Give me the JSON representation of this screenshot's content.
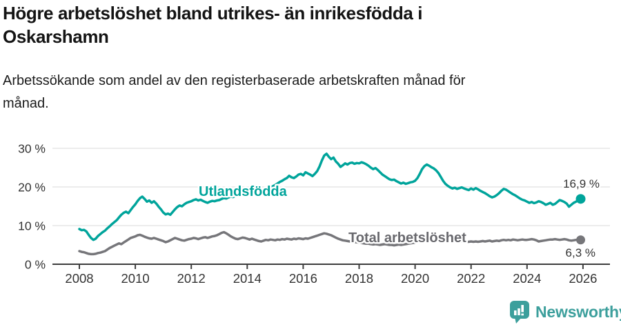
{
  "title": {
    "line1": "Högre arbetslöshet bland utrikes- än inrikesfödda i",
    "line2": "Oskarshamn"
  },
  "subtitle": {
    "line1": "Arbetssökande som andel av den registerbaserade arbetskraften månad för",
    "line2": "månad."
  },
  "branding": {
    "logo_text": "Newsworthy",
    "logo_icon": "bar-chart-speech-bubble-icon"
  },
  "colors": {
    "foreign_born_line": "#00a49b",
    "total_line": "#76767a",
    "total_label": "#68686d",
    "axis_text": "#333333",
    "end_label_text": "#333333",
    "gridline": "#e0e0e0",
    "axis_line": "#3d3d3d",
    "logo_teal": "#3c9f9c",
    "background": "#ffffff"
  },
  "chart_data": {
    "type": "line",
    "start_year": 2008,
    "points_per_year": 12,
    "grid": "horizontal",
    "ylim": [
      0,
      32
    ],
    "y_ticks": [
      {
        "value": 0,
        "label": "0 %"
      },
      {
        "value": 10,
        "label": "10 %"
      },
      {
        "value": 20,
        "label": "20 %"
      },
      {
        "value": 30,
        "label": "30 %"
      }
    ],
    "x_ticks": [
      {
        "year": 2008,
        "label": "2008"
      },
      {
        "year": 2010,
        "label": "2010"
      },
      {
        "year": 2012,
        "label": "2012"
      },
      {
        "year": 2014,
        "label": "2014"
      },
      {
        "year": 2016,
        "label": "2016"
      },
      {
        "year": 2018,
        "label": "2018"
      },
      {
        "year": 2020,
        "label": "2020"
      },
      {
        "year": 2022,
        "label": "2022"
      },
      {
        "year": 2024,
        "label": "2024"
      },
      {
        "year": 2026,
        "label": "2026"
      }
    ],
    "series": [
      {
        "name": "Utlandsfödda",
        "line_label": "Utlandsfödda",
        "end_label": "16,9 %",
        "end_value": 16.9,
        "values": [
          [
            9.1,
            8.8,
            8.9,
            8.5,
            7.6,
            6.8,
            6.3,
            6.6,
            7.3,
            7.8,
            8.3,
            8.7
          ],
          [
            9.3,
            9.8,
            10.4,
            10.9,
            11.4,
            12.1,
            12.8,
            13.3,
            13.6,
            13.2,
            14.0,
            14.8
          ],
          [
            15.5,
            16.4,
            17.1,
            17.5,
            16.9,
            16.2,
            16.5,
            15.9,
            16.3,
            15.7,
            14.9,
            14.2
          ],
          [
            13.4,
            12.9,
            13.1,
            12.8,
            13.5,
            14.2,
            14.8,
            15.2,
            15.0,
            15.5,
            15.9,
            16.1
          ],
          [
            16.3,
            16.6,
            16.8,
            16.5,
            16.7,
            16.4,
            16.1,
            15.9,
            16.2,
            16.4,
            16.3,
            16.5
          ],
          [
            16.6,
            16.9,
            17.1,
            17.0,
            17.3,
            17.5,
            17.4,
            17.7,
            17.9,
            17.8,
            18.0,
            18.2
          ],
          [
            18.1,
            18.4,
            18.6,
            18.5,
            18.8,
            19.0,
            19.2,
            19.1,
            19.4,
            19.7,
            19.9,
            20.2
          ],
          [
            20.5,
            20.9,
            21.3,
            21.6,
            22.0,
            22.3,
            22.9,
            22.5,
            22.3,
            22.7,
            23.2,
            23.4
          ],
          [
            23.0,
            23.8,
            23.5,
            23.2,
            22.8,
            23.4,
            24.1,
            25.3,
            26.8,
            28.1,
            28.6,
            27.8
          ],
          [
            27.2,
            27.6,
            26.6,
            26.0,
            25.2,
            25.6,
            26.1,
            25.8,
            26.2,
            26.3,
            26.0,
            26.2
          ],
          [
            26.1,
            26.4,
            26.2,
            25.9,
            25.5,
            25.0,
            24.6,
            24.9,
            24.4,
            23.8,
            23.2,
            22.8
          ],
          [
            22.4,
            22.0,
            21.8,
            21.9,
            21.5,
            21.2,
            20.9,
            21.1,
            20.8,
            21.0,
            21.2,
            21.3
          ],
          [
            21.6,
            22.3,
            23.4,
            24.6,
            25.4,
            25.8,
            25.5,
            25.1,
            24.8,
            24.3,
            23.6,
            22.6
          ],
          [
            21.6,
            20.8,
            20.3,
            19.9,
            19.6,
            19.8,
            19.5,
            19.7,
            19.9,
            19.6,
            19.4,
            19.2
          ],
          [
            19.6,
            19.3,
            19.7,
            19.4,
            19.0,
            18.7,
            18.4,
            18.0,
            17.6,
            17.3,
            17.5,
            17.9
          ],
          [
            18.4,
            19.0,
            19.5,
            19.3,
            18.9,
            18.5,
            18.1,
            17.8,
            17.4,
            17.0,
            16.7,
            16.5
          ],
          [
            16.2,
            15.9,
            16.1,
            15.8,
            16.0,
            16.3,
            16.1,
            15.8,
            15.4,
            15.6,
            15.9,
            15.4
          ],
          [
            15.6,
            16.1,
            16.6,
            16.4,
            16.1,
            15.7,
            14.9,
            15.4,
            15.9,
            16.2,
            16.5,
            16.9
          ]
        ]
      },
      {
        "name": "Total arbetslöshet",
        "line_label": "Total arbetslöshet",
        "end_label": "6,3 %",
        "end_value": 6.3,
        "values": [
          [
            3.4,
            3.2,
            3.1,
            2.9,
            2.7,
            2.6,
            2.6,
            2.7,
            2.9,
            3.0,
            3.2,
            3.4
          ],
          [
            3.8,
            4.2,
            4.5,
            4.8,
            5.1,
            5.4,
            5.2,
            5.6,
            6.0,
            6.4,
            6.8,
            7.0
          ],
          [
            7.2,
            7.5,
            7.6,
            7.4,
            7.1,
            6.9,
            6.7,
            6.6,
            6.8,
            6.6,
            6.4,
            6.2
          ],
          [
            6.0,
            5.7,
            5.9,
            6.2,
            6.5,
            6.8,
            6.6,
            6.4,
            6.2,
            6.1,
            6.3,
            6.5
          ],
          [
            6.6,
            6.8,
            6.7,
            6.5,
            6.7,
            6.9,
            7.0,
            6.8,
            7.0,
            7.2,
            7.3,
            7.5
          ],
          [
            7.8,
            8.1,
            8.3,
            8.0,
            7.6,
            7.2,
            6.9,
            6.6,
            6.5,
            6.7,
            6.9,
            6.8
          ],
          [
            6.6,
            6.4,
            6.6,
            6.4,
            6.2,
            6.0,
            5.9,
            6.1,
            6.3,
            6.2,
            6.4,
            6.3
          ],
          [
            6.2,
            6.4,
            6.3,
            6.5,
            6.4,
            6.6,
            6.5,
            6.4,
            6.6,
            6.5,
            6.7,
            6.6
          ],
          [
            6.5,
            6.7,
            6.6,
            6.8,
            7.0,
            7.2,
            7.4,
            7.6,
            7.8,
            8.0,
            7.9,
            7.7
          ],
          [
            7.5,
            7.2,
            6.9,
            6.6,
            6.4,
            6.2,
            6.1,
            6.0,
            5.9,
            5.8,
            5.7,
            5.7
          ],
          [
            5.6,
            5.5,
            5.4,
            5.3,
            5.3,
            5.2,
            5.1,
            5.2,
            5.1,
            5.0,
            5.1,
            5.2
          ],
          [
            5.1,
            5.0,
            5.0,
            4.9,
            5.0,
            5.1,
            5.0,
            5.1,
            5.2,
            5.3,
            5.4,
            5.5
          ],
          [
            5.6,
            5.8,
            6.3,
            6.8,
            7.1,
            7.3,
            7.2,
            7.1,
            7.0,
            6.9,
            6.8,
            6.7
          ],
          [
            6.6,
            6.5,
            6.4,
            6.3,
            6.2,
            6.1,
            6.0,
            6.0,
            5.9,
            5.9,
            5.8,
            5.8
          ],
          [
            5.9,
            5.8,
            5.9,
            5.8,
            5.9,
            6.0,
            5.9,
            6.0,
            6.1,
            5.9,
            6.0,
            6.1
          ],
          [
            6.0,
            6.2,
            6.3,
            6.2,
            6.3,
            6.2,
            6.4,
            6.3,
            6.2,
            6.3,
            6.4,
            6.3
          ],
          [
            6.3,
            6.4,
            6.5,
            6.4,
            6.2,
            5.9,
            6.0,
            6.1,
            6.2,
            6.3,
            6.4,
            6.4
          ],
          [
            6.5,
            6.4,
            6.3,
            6.4,
            6.5,
            6.4,
            6.2,
            6.1,
            6.2,
            6.3,
            6.3,
            6.3
          ]
        ]
      }
    ]
  }
}
